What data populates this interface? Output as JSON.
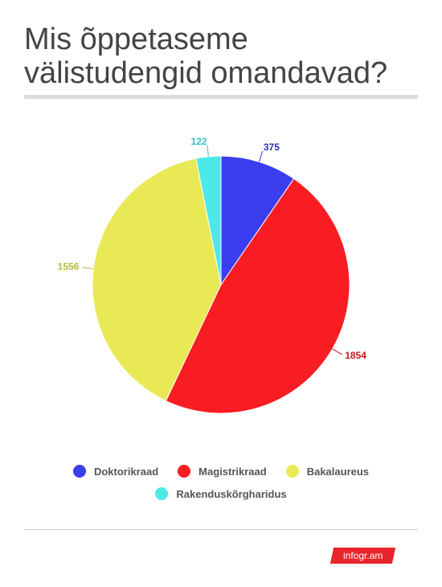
{
  "chart_data": {
    "type": "pie",
    "title": "Mis õppetaseme välistudengid omandavad?",
    "categories": [
      "Doktorikraad",
      "Magistrikraad",
      "Bakalaureus",
      "Rakenduskõrgharidus"
    ],
    "values": [
      375,
      1854,
      1556,
      122
    ],
    "colors": [
      "#3d3df0",
      "#f91c22",
      "#e9e955",
      "#4de8e8"
    ],
    "label_colors": [
      "#3030b0",
      "#c0181c",
      "#b8b840",
      "#3cc0c0"
    ]
  },
  "footer": {
    "brand": "infogr.am"
  }
}
